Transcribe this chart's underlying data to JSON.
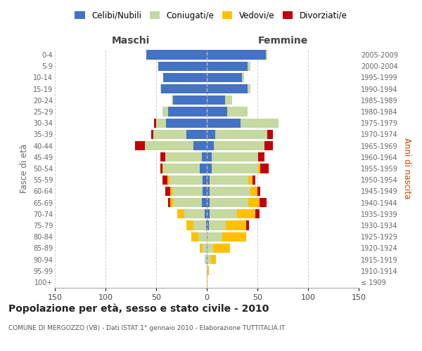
{
  "age_groups": [
    "100+",
    "95-99",
    "90-94",
    "85-89",
    "80-84",
    "75-79",
    "70-74",
    "65-69",
    "60-64",
    "55-59",
    "50-54",
    "45-49",
    "40-44",
    "35-39",
    "30-34",
    "25-29",
    "20-24",
    "15-19",
    "10-14",
    "5-9",
    "0-4"
  ],
  "birth_years": [
    "≤ 1909",
    "1910-1914",
    "1915-1919",
    "1920-1924",
    "1925-1929",
    "1930-1934",
    "1935-1939",
    "1940-1944",
    "1945-1949",
    "1950-1954",
    "1955-1959",
    "1960-1964",
    "1965-1969",
    "1970-1974",
    "1975-1979",
    "1980-1984",
    "1985-1989",
    "1990-1994",
    "1995-1999",
    "2000-2004",
    "2005-2009"
  ],
  "male_celibi": [
    0,
    0,
    0,
    0,
    0,
    1,
    2,
    5,
    4,
    4,
    7,
    5,
    13,
    20,
    40,
    38,
    33,
    45,
    43,
    48,
    60
  ],
  "male_coniugati": [
    0,
    0,
    2,
    4,
    8,
    12,
    20,
    28,
    30,
    33,
    36,
    36,
    48,
    33,
    10,
    6,
    2,
    1,
    0,
    0,
    0
  ],
  "male_vedovi": [
    0,
    0,
    0,
    3,
    7,
    7,
    7,
    3,
    2,
    2,
    1,
    0,
    0,
    0,
    0,
    0,
    0,
    0,
    0,
    0,
    0
  ],
  "male_divorziati": [
    0,
    0,
    0,
    0,
    0,
    0,
    0,
    2,
    5,
    5,
    2,
    5,
    10,
    2,
    2,
    0,
    0,
    0,
    0,
    0,
    0
  ],
  "female_celibi": [
    0,
    0,
    1,
    1,
    1,
    2,
    3,
    3,
    3,
    3,
    5,
    5,
    7,
    8,
    33,
    20,
    18,
    40,
    35,
    40,
    58
  ],
  "female_coniugati": [
    0,
    1,
    3,
    5,
    14,
    17,
    27,
    38,
    40,
    38,
    46,
    46,
    50,
    52,
    38,
    20,
    7,
    3,
    2,
    3,
    2
  ],
  "female_vedovi": [
    1,
    1,
    5,
    17,
    24,
    20,
    18,
    11,
    7,
    4,
    2,
    0,
    0,
    0,
    0,
    0,
    0,
    0,
    0,
    0,
    0
  ],
  "female_divorziati": [
    0,
    0,
    0,
    0,
    0,
    3,
    4,
    7,
    3,
    3,
    8,
    6,
    8,
    5,
    0,
    0,
    0,
    0,
    0,
    0,
    0
  ],
  "color_celibi": "#4472c4",
  "color_coniugati": "#c5d9a0",
  "color_vedovi": "#ffc000",
  "color_divorziati": "#c0000b",
  "title": "Popolazione per età, sesso e stato civile - 2010",
  "subtitle": "COMUNE DI MERGOZZO (VB) - Dati ISTAT 1° gennaio 2010 - Elaborazione TUTTITALIA.IT",
  "xlabel_left": "Maschi",
  "xlabel_right": "Femmine",
  "ylabel_left": "Fasce di età",
  "ylabel_right": "Anni di nascita",
  "xlim": 150,
  "bg_color": "#ffffff",
  "grid_color": "#cccccc"
}
